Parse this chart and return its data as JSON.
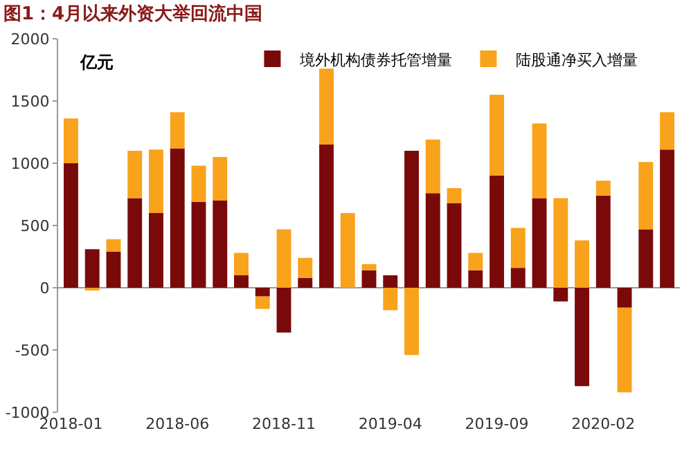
{
  "chart_data": {
    "type": "bar",
    "stacked": true,
    "title": "图1：4月以来外资大举回流中国",
    "ylabel": "亿元",
    "categories": [
      "2018-01",
      null,
      null,
      null,
      null,
      "2018-06",
      null,
      null,
      null,
      null,
      "2018-11",
      null,
      null,
      null,
      null,
      "2019-04",
      null,
      null,
      null,
      null,
      "2019-09",
      null,
      null,
      null,
      null,
      "2020-02",
      null,
      null,
      null
    ],
    "series": [
      {
        "name": "境外机构债券托管增量",
        "color": "#7a0a0a",
        "values": [
          1000,
          310,
          290,
          720,
          600,
          1120,
          690,
          700,
          100,
          -70,
          -360,
          80,
          1150,
          0,
          140,
          100,
          1100,
          760,
          680,
          140,
          900,
          160,
          720,
          -110,
          -790,
          740,
          -160,
          470,
          1110
        ]
      },
      {
        "name": "陆股通净买入增量",
        "color": "#f9a21b",
        "values": [
          360,
          -20,
          100,
          380,
          510,
          290,
          290,
          350,
          180,
          -100,
          470,
          160,
          610,
          600,
          50,
          -180,
          -540,
          430,
          120,
          140,
          650,
          320,
          600,
          720,
          380,
          120,
          -680,
          540,
          300
        ]
      }
    ],
    "ylim": [
      -1000,
      2000
    ],
    "yticks": [
      -1000,
      -500,
      0,
      500,
      1000,
      1500,
      2000
    ],
    "legend": "top"
  }
}
